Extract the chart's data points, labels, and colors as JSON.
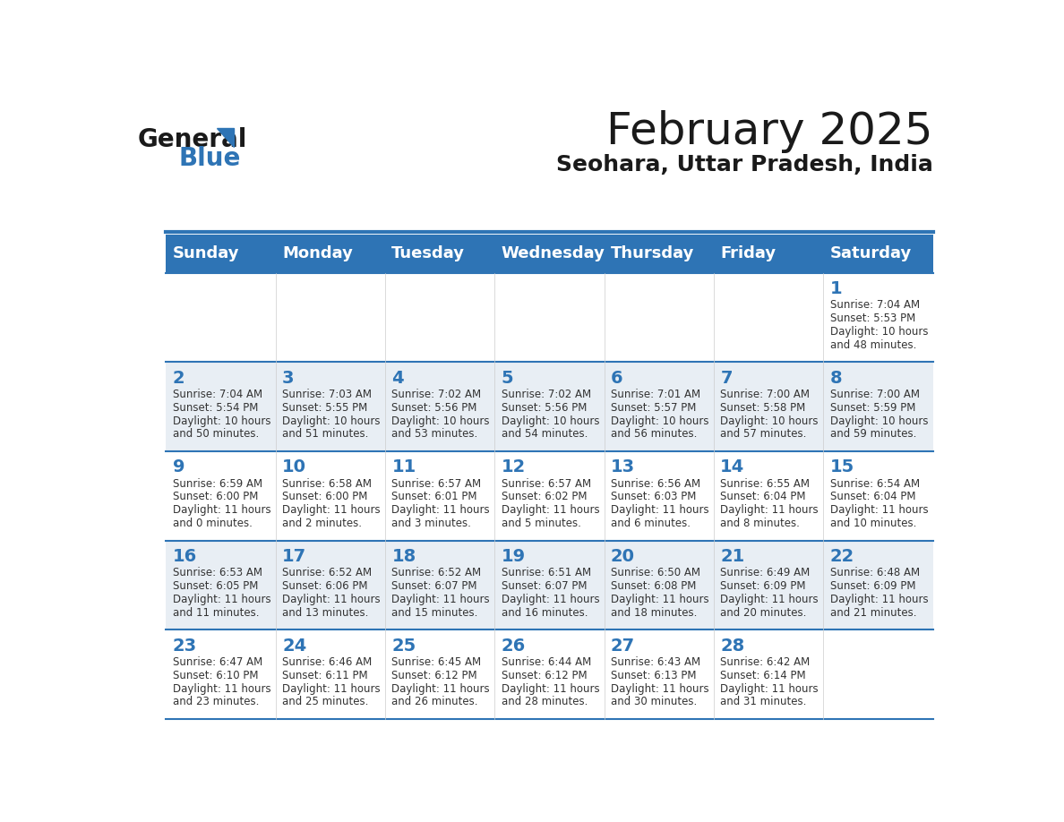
{
  "title": "February 2025",
  "subtitle": "Seohara, Uttar Pradesh, India",
  "header_bg": "#2E74B5",
  "header_text": "#FFFFFF",
  "header_days": [
    "Sunday",
    "Monday",
    "Tuesday",
    "Wednesday",
    "Thursday",
    "Friday",
    "Saturday"
  ],
  "odd_row_bg": "#FFFFFF",
  "even_row_bg": "#E8EEF4",
  "cell_text_color": "#333333",
  "day_number_color": "#2E74B5",
  "divider_color": "#2E74B5",
  "logo_general_color": "#1a1a1a",
  "logo_blue_color": "#2E74B5",
  "calendar_data": [
    [
      null,
      null,
      null,
      null,
      null,
      null,
      {
        "day": 1,
        "sunrise": "7:04 AM",
        "sunset": "5:53 PM",
        "daylight": "10 hours\nand 48 minutes."
      }
    ],
    [
      {
        "day": 2,
        "sunrise": "7:04 AM",
        "sunset": "5:54 PM",
        "daylight": "10 hours\nand 50 minutes."
      },
      {
        "day": 3,
        "sunrise": "7:03 AM",
        "sunset": "5:55 PM",
        "daylight": "10 hours\nand 51 minutes."
      },
      {
        "day": 4,
        "sunrise": "7:02 AM",
        "sunset": "5:56 PM",
        "daylight": "10 hours\nand 53 minutes."
      },
      {
        "day": 5,
        "sunrise": "7:02 AM",
        "sunset": "5:56 PM",
        "daylight": "10 hours\nand 54 minutes."
      },
      {
        "day": 6,
        "sunrise": "7:01 AM",
        "sunset": "5:57 PM",
        "daylight": "10 hours\nand 56 minutes."
      },
      {
        "day": 7,
        "sunrise": "7:00 AM",
        "sunset": "5:58 PM",
        "daylight": "10 hours\nand 57 minutes."
      },
      {
        "day": 8,
        "sunrise": "7:00 AM",
        "sunset": "5:59 PM",
        "daylight": "10 hours\nand 59 minutes."
      }
    ],
    [
      {
        "day": 9,
        "sunrise": "6:59 AM",
        "sunset": "6:00 PM",
        "daylight": "11 hours\nand 0 minutes."
      },
      {
        "day": 10,
        "sunrise": "6:58 AM",
        "sunset": "6:00 PM",
        "daylight": "11 hours\nand 2 minutes."
      },
      {
        "day": 11,
        "sunrise": "6:57 AM",
        "sunset": "6:01 PM",
        "daylight": "11 hours\nand 3 minutes."
      },
      {
        "day": 12,
        "sunrise": "6:57 AM",
        "sunset": "6:02 PM",
        "daylight": "11 hours\nand 5 minutes."
      },
      {
        "day": 13,
        "sunrise": "6:56 AM",
        "sunset": "6:03 PM",
        "daylight": "11 hours\nand 6 minutes."
      },
      {
        "day": 14,
        "sunrise": "6:55 AM",
        "sunset": "6:04 PM",
        "daylight": "11 hours\nand 8 minutes."
      },
      {
        "day": 15,
        "sunrise": "6:54 AM",
        "sunset": "6:04 PM",
        "daylight": "11 hours\nand 10 minutes."
      }
    ],
    [
      {
        "day": 16,
        "sunrise": "6:53 AM",
        "sunset": "6:05 PM",
        "daylight": "11 hours\nand 11 minutes."
      },
      {
        "day": 17,
        "sunrise": "6:52 AM",
        "sunset": "6:06 PM",
        "daylight": "11 hours\nand 13 minutes."
      },
      {
        "day": 18,
        "sunrise": "6:52 AM",
        "sunset": "6:07 PM",
        "daylight": "11 hours\nand 15 minutes."
      },
      {
        "day": 19,
        "sunrise": "6:51 AM",
        "sunset": "6:07 PM",
        "daylight": "11 hours\nand 16 minutes."
      },
      {
        "day": 20,
        "sunrise": "6:50 AM",
        "sunset": "6:08 PM",
        "daylight": "11 hours\nand 18 minutes."
      },
      {
        "day": 21,
        "sunrise": "6:49 AM",
        "sunset": "6:09 PM",
        "daylight": "11 hours\nand 20 minutes."
      },
      {
        "day": 22,
        "sunrise": "6:48 AM",
        "sunset": "6:09 PM",
        "daylight": "11 hours\nand 21 minutes."
      }
    ],
    [
      {
        "day": 23,
        "sunrise": "6:47 AM",
        "sunset": "6:10 PM",
        "daylight": "11 hours\nand 23 minutes."
      },
      {
        "day": 24,
        "sunrise": "6:46 AM",
        "sunset": "6:11 PM",
        "daylight": "11 hours\nand 25 minutes."
      },
      {
        "day": 25,
        "sunrise": "6:45 AM",
        "sunset": "6:12 PM",
        "daylight": "11 hours\nand 26 minutes."
      },
      {
        "day": 26,
        "sunrise": "6:44 AM",
        "sunset": "6:12 PM",
        "daylight": "11 hours\nand 28 minutes."
      },
      {
        "day": 27,
        "sunrise": "6:43 AM",
        "sunset": "6:13 PM",
        "daylight": "11 hours\nand 30 minutes."
      },
      {
        "day": 28,
        "sunrise": "6:42 AM",
        "sunset": "6:14 PM",
        "daylight": "11 hours\nand 31 minutes."
      },
      null
    ]
  ]
}
